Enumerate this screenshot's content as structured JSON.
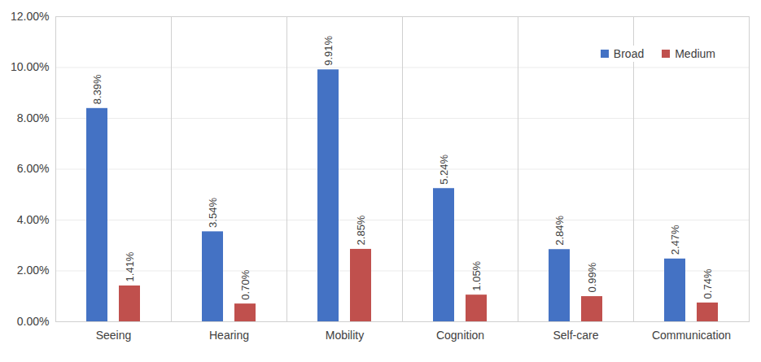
{
  "chart_data": {
    "type": "bar",
    "categories": [
      "Seeing",
      "Hearing",
      "Mobility",
      "Cognition",
      "Self-care",
      "Communication"
    ],
    "series": [
      {
        "name": "Broad",
        "color": "#4472c4",
        "values": [
          8.39,
          3.54,
          9.91,
          5.24,
          2.84,
          2.47
        ],
        "value_labels": [
          "8.39%",
          "3.54%",
          "9.91%",
          "5.24%",
          "2.84%",
          "2.47%"
        ]
      },
      {
        "name": "Medium",
        "color": "#c0504d",
        "values": [
          1.41,
          0.7,
          2.85,
          1.05,
          0.99,
          0.74
        ],
        "value_labels": [
          "1.41%",
          "0.70%",
          "2.85%",
          "1.05%",
          "0.99%",
          "0.74%"
        ]
      }
    ],
    "ylim": [
      0,
      12
    ],
    "yticks": [
      {
        "value": 0,
        "label": "0.00%"
      },
      {
        "value": 2,
        "label": "2.00%"
      },
      {
        "value": 4,
        "label": "4.00%"
      },
      {
        "value": 6,
        "label": "6.00%"
      },
      {
        "value": 8,
        "label": "8.00%"
      },
      {
        "value": 10,
        "label": "10.00%"
      },
      {
        "value": 12,
        "label": "12.00%"
      }
    ],
    "grid": true,
    "legend": "top-right",
    "data_labels": true
  }
}
